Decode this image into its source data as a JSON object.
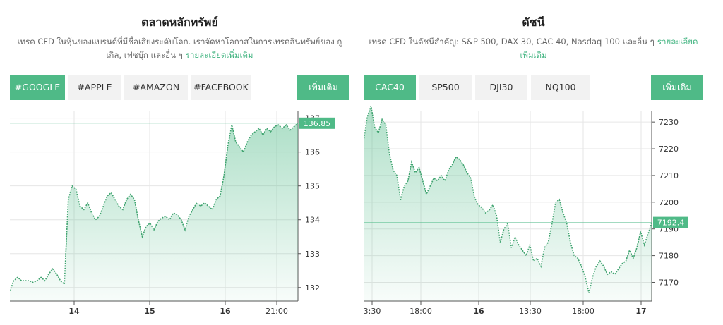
{
  "stocks": {
    "title": "ตลาดหลักทรัพย์",
    "description": "เทรด CFD ในหุ้นของแบรนด์ที่มีชื่อเสียงระดับโลก. เราจัดหาโอกาสในการเทรดสินทรัพย์ของ กูเกิล, เฟซบุ๊ก และอื่น ๆ",
    "more_link": "รายละเอียดเพิ่มเติม",
    "tabs": [
      "#GOOGLE",
      "#APPLE",
      "#AMAZON",
      "#FACEBOOK"
    ],
    "active_tab": "#GOOGLE",
    "more_button": "เพิ่มเติม"
  },
  "indices": {
    "title": "ดัชนี",
    "description": "เทรด CFD ในดัชนีสำคัญ: S&P 500, DAX 30, CAC 40, Nasdaq 100 และอื่น ๆ",
    "more_link": "รายละเอียดเพิ่มเติม",
    "tabs": [
      "CAC40",
      "SP500",
      "DJI30",
      "NQ100"
    ],
    "active_tab": "CAC40",
    "more_button": "เพิ่มเติม"
  },
  "colors": {
    "accent": "#4fba87",
    "line": "#3fa36f",
    "tab_bg": "#f2f2f2",
    "grid": "#e6e6e6"
  },
  "chart_data": [
    {
      "type": "area",
      "instrument": "#GOOGLE",
      "x_ticks": [
        "14",
        "15",
        "16",
        "21:00"
      ],
      "y_ticks": [
        132,
        133,
        134,
        135,
        136,
        137
      ],
      "ylim": [
        131.6,
        137.2
      ],
      "current_value": "136.85",
      "grid": true,
      "values": [
        131.9,
        132.2,
        132.3,
        132.2,
        132.2,
        132.2,
        132.15,
        132.2,
        132.3,
        132.2,
        132.4,
        132.55,
        132.4,
        132.2,
        132.1,
        134.6,
        135.0,
        134.9,
        134.4,
        134.3,
        134.5,
        134.2,
        134.0,
        134.1,
        134.4,
        134.7,
        134.8,
        134.6,
        134.4,
        134.3,
        134.6,
        134.75,
        134.6,
        134.0,
        133.5,
        133.8,
        133.9,
        133.7,
        133.95,
        134.05,
        134.1,
        134.0,
        134.2,
        134.15,
        134.0,
        133.7,
        134.1,
        134.3,
        134.5,
        134.4,
        134.5,
        134.4,
        134.3,
        134.6,
        134.7,
        135.3,
        136.2,
        136.8,
        136.3,
        136.15,
        136.0,
        136.3,
        136.5,
        136.6,
        136.7,
        136.5,
        136.7,
        136.6,
        136.75,
        136.8,
        136.7,
        136.8,
        136.65,
        136.75,
        136.85
      ]
    },
    {
      "type": "area",
      "instrument": "CAC40",
      "x_ticks": [
        "3:30",
        "18:00",
        "16",
        "13:30",
        "18:00",
        "17"
      ],
      "y_ticks": [
        7170,
        7180,
        7190,
        7200,
        7210,
        7220,
        7230
      ],
      "ylim": [
        7163,
        7234
      ],
      "current_value": "7192.4",
      "grid": true,
      "values": [
        7223,
        7232,
        7236,
        7228,
        7226,
        7231,
        7229,
        7218,
        7212,
        7210,
        7201,
        7206,
        7208,
        7215,
        7211,
        7213,
        7208,
        7203,
        7206,
        7209,
        7208,
        7210,
        7208,
        7212,
        7214,
        7217,
        7216,
        7214,
        7211,
        7209,
        7202,
        7199,
        7198,
        7196,
        7197,
        7199,
        7195,
        7185,
        7190,
        7192,
        7183,
        7187,
        7184,
        7182,
        7180,
        7184,
        7178,
        7179,
        7176,
        7183,
        7185,
        7192,
        7200,
        7201,
        7196,
        7192,
        7185,
        7180,
        7179,
        7176,
        7172,
        7166,
        7172,
        7176,
        7178,
        7176,
        7173,
        7174,
        7173,
        7175,
        7177,
        7178,
        7182,
        7179,
        7183,
        7189,
        7184,
        7188,
        7192.4
      ]
    }
  ]
}
